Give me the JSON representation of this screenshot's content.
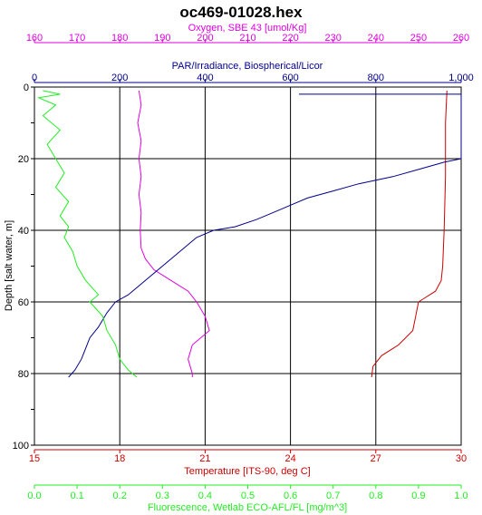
{
  "chart_data": {
    "type": "line",
    "title": "oc469-01028.hex",
    "y_axis": {
      "label": "Depth [salt water, m]",
      "range": [
        0,
        100
      ],
      "ticks": [
        0,
        10,
        20,
        30,
        40,
        50,
        60,
        70,
        80,
        90,
        100
      ],
      "reversed": true
    },
    "axes": {
      "oxygen": {
        "label": "Oxygen, SBE 43 [umol/Kg]",
        "color": "#e000e0",
        "range": [
          160,
          260
        ],
        "ticks": [
          "160",
          "170",
          "180",
          "190",
          "200",
          "210",
          "220",
          "230",
          "240",
          "250",
          "260"
        ]
      },
      "par": {
        "label": "PAR/Irradiance, Biospherical/Licor",
        "color": "#00008b",
        "range": [
          0,
          1000
        ],
        "ticks": [
          "0",
          "200",
          "400",
          "600",
          "800",
          "1,000"
        ]
      },
      "temperature": {
        "label": "Temperature [ITS-90, deg C]",
        "color": "#cc0000",
        "range": [
          15,
          30
        ],
        "ticks": [
          "15",
          "18",
          "21",
          "24",
          "27",
          "30"
        ]
      },
      "fluorescence": {
        "label": "Fluorescence, Wetlab ECO-AFL/FL [mg/m^3]",
        "color": "#22ee22",
        "range": [
          0,
          1
        ],
        "ticks": [
          "0.0",
          "0.1",
          "0.2",
          "0.3",
          "0.4",
          "0.5",
          "0.6",
          "0.7",
          "0.8",
          "0.9",
          "1.0"
        ]
      }
    },
    "grid": true,
    "series": [
      {
        "key": "temperature",
        "color": "#cc0000",
        "points": [
          [
            29.5,
            1
          ],
          [
            29.45,
            10
          ],
          [
            29.45,
            25
          ],
          [
            29.4,
            40
          ],
          [
            29.35,
            50
          ],
          [
            29.3,
            54
          ],
          [
            29.1,
            57
          ],
          [
            28.7,
            59
          ],
          [
            28.5,
            60
          ],
          [
            28.4,
            64
          ],
          [
            28.3,
            68
          ],
          [
            27.8,
            72
          ],
          [
            27.2,
            75
          ],
          [
            26.9,
            78
          ],
          [
            26.85,
            81
          ]
        ]
      },
      {
        "key": "oxygen",
        "color": "#e000e0",
        "points": [
          [
            184.5,
            1
          ],
          [
            185,
            5
          ],
          [
            184.2,
            10
          ],
          [
            185,
            15
          ],
          [
            184.5,
            20
          ],
          [
            185,
            25
          ],
          [
            184.5,
            30
          ],
          [
            185,
            35
          ],
          [
            184.8,
            40
          ],
          [
            185,
            45
          ],
          [
            186,
            48
          ],
          [
            188,
            51
          ],
          [
            192,
            54
          ],
          [
            196,
            57
          ],
          [
            198,
            60
          ],
          [
            200,
            64
          ],
          [
            201,
            68
          ],
          [
            197,
            72
          ],
          [
            196,
            76
          ],
          [
            197,
            80
          ],
          [
            197,
            81
          ]
        ]
      },
      {
        "key": "par",
        "color": "#00008b",
        "points": [
          [
            620,
            2
          ],
          [
            1000,
            2
          ],
          [
            1000,
            20
          ],
          [
            960,
            21
          ],
          [
            900,
            23
          ],
          [
            840,
            25
          ],
          [
            760,
            27
          ],
          [
            700,
            29
          ],
          [
            640,
            31
          ],
          [
            600,
            33
          ],
          [
            560,
            35
          ],
          [
            520,
            37
          ],
          [
            470,
            39
          ],
          [
            420,
            40
          ],
          [
            380,
            42
          ],
          [
            360,
            44
          ],
          [
            340,
            46
          ],
          [
            320,
            48
          ],
          [
            300,
            50
          ],
          [
            280,
            52
          ],
          [
            260,
            54
          ],
          [
            240,
            56
          ],
          [
            220,
            58
          ],
          [
            190,
            60
          ],
          [
            170,
            63
          ],
          [
            150,
            67
          ],
          [
            130,
            70
          ],
          [
            120,
            73
          ],
          [
            110,
            76
          ],
          [
            95,
            79
          ],
          [
            80,
            81
          ]
        ]
      },
      {
        "key": "fluorescence",
        "color": "#22ee22",
        "points": [
          [
            0.02,
            1
          ],
          [
            0.06,
            2
          ],
          [
            0.01,
            3
          ],
          [
            0.05,
            5
          ],
          [
            0.02,
            8
          ],
          [
            0.06,
            12
          ],
          [
            0.03,
            16
          ],
          [
            0.05,
            20
          ],
          [
            0.07,
            24
          ],
          [
            0.05,
            28
          ],
          [
            0.08,
            32
          ],
          [
            0.06,
            36
          ],
          [
            0.08,
            39
          ],
          [
            0.07,
            42
          ],
          [
            0.09,
            46
          ],
          [
            0.1,
            50
          ],
          [
            0.12,
            54
          ],
          [
            0.15,
            58
          ],
          [
            0.13,
            60
          ],
          [
            0.16,
            64
          ],
          [
            0.17,
            68
          ],
          [
            0.19,
            72
          ],
          [
            0.2,
            76
          ],
          [
            0.22,
            79
          ],
          [
            0.24,
            81
          ]
        ]
      }
    ]
  }
}
